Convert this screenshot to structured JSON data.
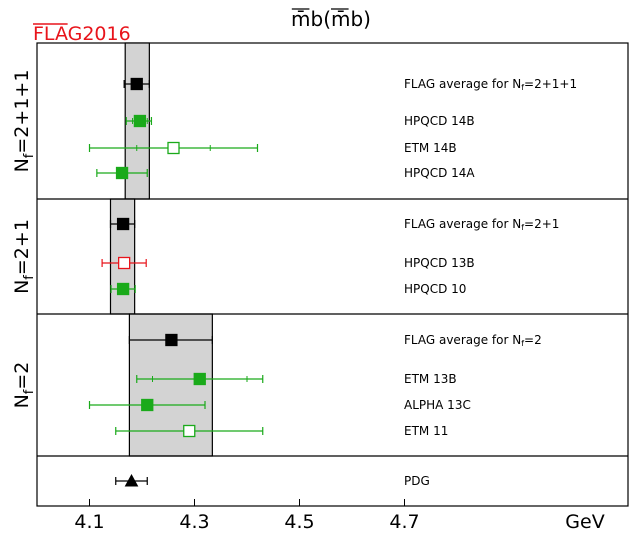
{
  "chart_data": {
    "type": "scatter",
    "title": "m̄b(m̄b)",
    "brand": {
      "prefix": "FLA",
      "suffix": "G2016",
      "color": "#e8141b"
    },
    "xlabel": "GeV",
    "xlim": [
      4.0,
      5.2
    ],
    "xticks": [
      4.1,
      4.3,
      4.5,
      4.7
    ],
    "colors": {
      "flag": "#000000",
      "green": "#1aaa1a",
      "red": "#e8141b",
      "band": "#d3d3d3"
    },
    "panels": [
      {
        "label": "Nf=2+1+1",
        "band": [
          4.168,
          4.214
        ],
        "entries": [
          {
            "label": "FLAG average for Nf=2+1+1",
            "value": 4.19,
            "err": [
              4.166,
              4.214
            ],
            "marker": "square",
            "color": "flag",
            "filled": true
          },
          {
            "label": "HPQCD 14B",
            "value": 4.196,
            "err": [
              4.17,
              4.218
            ],
            "err_inner": [
              4.182,
              4.21
            ],
            "marker": "square",
            "color": "green",
            "filled": true
          },
          {
            "label": "ETM 14B",
            "value": 4.26,
            "err": [
              4.1,
              4.42
            ],
            "err_inner": [
              4.19,
              4.33
            ],
            "marker": "square",
            "color": "green",
            "filled": false
          },
          {
            "label": "HPQCD 14A",
            "value": 4.162,
            "err": [
              4.114,
              4.21
            ],
            "marker": "square",
            "color": "green",
            "filled": true
          }
        ]
      },
      {
        "label": "Nf=2+1",
        "band": [
          4.14,
          4.186
        ],
        "entries": [
          {
            "label": "FLAG average for Nf=2+1",
            "value": 4.164,
            "err": [
              4.14,
              4.186
            ],
            "marker": "square",
            "color": "flag",
            "filled": true
          },
          {
            "label": "HPQCD 13B",
            "value": 4.166,
            "err": [
              4.124,
              4.208
            ],
            "marker": "square",
            "color": "red",
            "filled": false
          },
          {
            "label": "HPQCD 10",
            "value": 4.164,
            "err": [
              4.141,
              4.187
            ],
            "marker": "square",
            "color": "green",
            "filled": true
          }
        ]
      },
      {
        "label": "Nf=2",
        "band": [
          4.176,
          4.334
        ],
        "entries": [
          {
            "label": "FLAG average for Nf=2",
            "value": 4.256,
            "err": [
              4.176,
              4.334
            ],
            "marker": "square",
            "color": "flag",
            "filled": true
          },
          {
            "label": "ETM 13B",
            "value": 4.31,
            "err": [
              4.19,
              4.43
            ],
            "err_inner": [
              4.22,
              4.4
            ],
            "marker": "square",
            "color": "green",
            "filled": true
          },
          {
            "label": "ALPHA 13C",
            "value": 4.21,
            "err": [
              4.1,
              4.32
            ],
            "marker": "square",
            "color": "green",
            "filled": true
          },
          {
            "label": "ETM 11",
            "value": 4.29,
            "err": [
              4.15,
              4.43
            ],
            "marker": "square",
            "color": "green",
            "filled": false
          }
        ]
      },
      {
        "label": "",
        "band": null,
        "entries": [
          {
            "label": "PDG",
            "value": 4.18,
            "err": [
              4.15,
              4.21
            ],
            "marker": "triangle",
            "color": "flag",
            "filled": true
          }
        ]
      }
    ]
  }
}
